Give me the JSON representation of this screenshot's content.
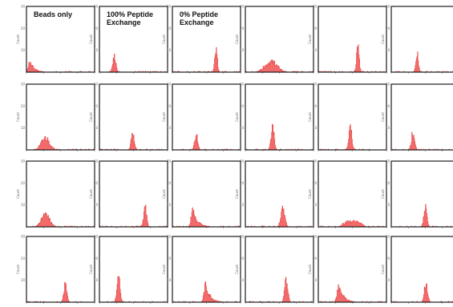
{
  "figure": {
    "title_labels": [
      "Beads only",
      [
        "100% Peptide",
        "Exchange"
      ],
      [
        "0% Peptide",
        "Exchange"
      ]
    ],
    "y_axis_label": "Count",
    "y_tick_labels": [
      "",
      "10",
      "20",
      "30"
    ],
    "colors": {
      "fill": "#f26a6a",
      "stroke": "#e02020",
      "frame": "#1a1a1a"
    }
  },
  "chart_data": {
    "type": "histogram-grid",
    "rows": 4,
    "cols": 6,
    "x_range": [
      0,
      100
    ],
    "y_range": [
      0,
      30
    ],
    "panels": [
      {
        "row": 0,
        "col": 0,
        "title": "Beads only",
        "peak_x": 5,
        "width": 4,
        "height": 6,
        "shape": "skew",
        "seed": 11
      },
      {
        "row": 0,
        "col": 1,
        "title": "100% Peptide Exchange",
        "peak_x": 22,
        "width": 3,
        "height": 9,
        "shape": "narrow",
        "seed": 12
      },
      {
        "row": 0,
        "col": 2,
        "title": "0% Peptide Exchange",
        "peak_x": 64,
        "width": 2.5,
        "height": 15,
        "shape": "narrow",
        "seed": 13
      },
      {
        "row": 0,
        "col": 3,
        "title": "",
        "peak_x": 38,
        "width": 9,
        "height": 6,
        "shape": "broad",
        "seed": 14
      },
      {
        "row": 0,
        "col": 4,
        "title": "",
        "peak_x": 58,
        "width": 2.5,
        "height": 15,
        "shape": "narrow",
        "seed": 15
      },
      {
        "row": 0,
        "col": 5,
        "title": "",
        "peak_x": 38,
        "width": 2.5,
        "height": 11,
        "shape": "narrow",
        "seed": 16
      },
      {
        "row": 1,
        "col": 0,
        "title": "",
        "peak_x": 28,
        "width": 6,
        "height": 7,
        "shape": "broad",
        "seed": 21
      },
      {
        "row": 1,
        "col": 1,
        "title": "",
        "peak_x": 49,
        "width": 3,
        "height": 11,
        "shape": "narrow",
        "seed": 22
      },
      {
        "row": 1,
        "col": 2,
        "title": "",
        "peak_x": 35,
        "width": 3,
        "height": 9,
        "shape": "narrow",
        "seed": 23
      },
      {
        "row": 1,
        "col": 3,
        "title": "",
        "peak_x": 40,
        "width": 3,
        "height": 13,
        "shape": "narrow",
        "seed": 24
      },
      {
        "row": 1,
        "col": 4,
        "title": "",
        "peak_x": 47,
        "width": 3,
        "height": 13,
        "shape": "narrow",
        "seed": 25
      },
      {
        "row": 1,
        "col": 5,
        "title": "",
        "peak_x": 32,
        "width": 3,
        "height": 11,
        "shape": "narrow",
        "seed": 26
      },
      {
        "row": 2,
        "col": 0,
        "title": "",
        "peak_x": 28,
        "width": 6,
        "height": 7,
        "shape": "broad",
        "seed": 31
      },
      {
        "row": 2,
        "col": 1,
        "title": "",
        "peak_x": 67,
        "width": 3,
        "height": 11,
        "shape": "narrow",
        "seed": 32
      },
      {
        "row": 2,
        "col": 2,
        "title": "",
        "peak_x": 30,
        "width": 4,
        "height": 10,
        "shape": "skew",
        "seed": 33
      },
      {
        "row": 2,
        "col": 3,
        "title": "",
        "peak_x": 55,
        "width": 4,
        "height": 10,
        "shape": "narrow",
        "seed": 34
      },
      {
        "row": 2,
        "col": 4,
        "title": "",
        "peak_x": 50,
        "width": 14,
        "height": 3,
        "shape": "flat",
        "seed": 35
      },
      {
        "row": 2,
        "col": 5,
        "title": "",
        "peak_x": 50,
        "width": 3,
        "height": 11,
        "shape": "narrow",
        "seed": 36
      },
      {
        "row": 3,
        "col": 0,
        "title": "",
        "peak_x": 57,
        "width": 3,
        "height": 11,
        "shape": "narrow",
        "seed": 41
      },
      {
        "row": 3,
        "col": 1,
        "title": "",
        "peak_x": 28,
        "width": 3,
        "height": 14,
        "shape": "narrow",
        "seed": 42
      },
      {
        "row": 3,
        "col": 2,
        "title": "",
        "peak_x": 49,
        "width": 4,
        "height": 10,
        "shape": "skew",
        "seed": 43
      },
      {
        "row": 3,
        "col": 3,
        "title": "",
        "peak_x": 60,
        "width": 3,
        "height": 14,
        "shape": "narrow",
        "seed": 44
      },
      {
        "row": 3,
        "col": 4,
        "title": "",
        "peak_x": 30,
        "width": 4,
        "height": 10,
        "shape": "skew",
        "seed": 45
      },
      {
        "row": 3,
        "col": 5,
        "title": "",
        "peak_x": 51,
        "width": 3,
        "height": 12,
        "shape": "narrow",
        "seed": 46
      }
    ]
  }
}
